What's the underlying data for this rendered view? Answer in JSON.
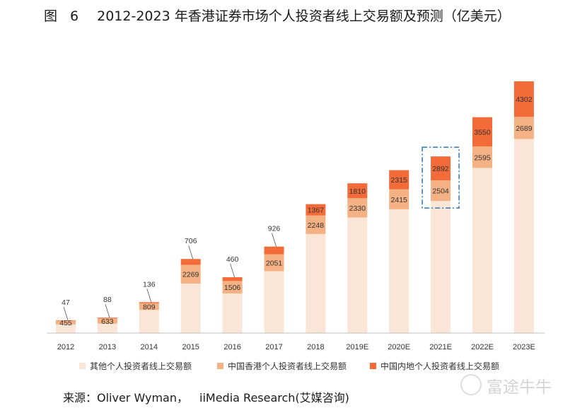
{
  "title": {
    "figure_label": "图",
    "figure_number": "6",
    "text": "2012-2023 年香港证券市场个人投资者线上交易额及预测（亿美元）"
  },
  "chart_data": {
    "type": "bar",
    "stacked": true,
    "title": "2012-2023 年香港证券市场个人投资者线上交易额及预测（亿美元）",
    "categories": [
      "2012",
      "2013",
      "2014",
      "2015",
      "2016",
      "2017",
      "2018",
      "2019E",
      "2020E",
      "2021E",
      "2022E",
      "2023E"
    ],
    "series": [
      {
        "name": "其他个人投资者线上交易额",
        "color": "#fbe5d6",
        "values": [
          null,
          null,
          null,
          null,
          null,
          null,
          null,
          null,
          null,
          null,
          null,
          null
        ],
        "value_labels": false
      },
      {
        "name": "中国香港个人投资者线上交易额",
        "color": "#f4b183",
        "values": [
          455,
          633,
          809,
          2269,
          1506,
          2051,
          2248,
          2330,
          2415,
          2504,
          2595,
          2689
        ]
      },
      {
        "name": "中国内地个人投资者线上交易额",
        "color": "#f26b38",
        "values": [
          47,
          88,
          136,
          706,
          460,
          926,
          1367,
          1810,
          2315,
          2892,
          3550,
          4302
        ]
      }
    ],
    "estimated_heights_other": [
      1050,
      1150,
      2800,
      6000,
      4800,
      7500,
      12000,
      14000,
      15000,
      16000,
      20000,
      23500
    ],
    "highlight_category": "2021E",
    "legend": "bottom",
    "grid": false,
    "xlabel": "",
    "ylabel": ""
  },
  "source": {
    "label": "来源：Oliver Wyman，",
    "rest": "iiMedia Research(艾媒咨询)"
  },
  "watermark": "富途牛牛"
}
